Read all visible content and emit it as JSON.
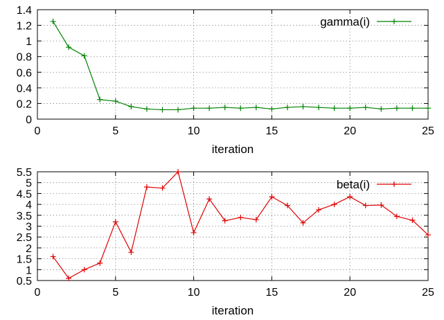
{
  "chart_data": [
    {
      "type": "line",
      "title": "",
      "xlabel": "iteration",
      "ylabel": "",
      "xlim": [
        0,
        25
      ],
      "ylim": [
        0,
        1.4
      ],
      "xticks": [
        0,
        5,
        10,
        15,
        20,
        25
      ],
      "yticks": [
        0,
        0.2,
        0.4,
        0.6,
        0.8,
        1,
        1.2,
        1.4
      ],
      "grid": true,
      "legend": "top-right",
      "series": [
        {
          "name": "gamma(i)",
          "color": "#008000",
          "marker": "plus",
          "x": [
            1,
            2,
            3,
            4,
            5,
            6,
            7,
            8,
            9,
            10,
            11,
            12,
            13,
            14,
            15,
            16,
            17,
            18,
            19,
            20,
            21,
            22,
            23,
            24,
            25
          ],
          "y": [
            1.25,
            0.92,
            0.81,
            0.25,
            0.23,
            0.16,
            0.13,
            0.12,
            0.12,
            0.14,
            0.14,
            0.15,
            0.14,
            0.15,
            0.13,
            0.15,
            0.16,
            0.15,
            0.14,
            0.14,
            0.15,
            0.13,
            0.14,
            0.14,
            0.14
          ]
        }
      ]
    },
    {
      "type": "line",
      "title": "",
      "xlabel": "iteration",
      "ylabel": "",
      "xlim": [
        0,
        25
      ],
      "ylim": [
        0.5,
        5.5
      ],
      "xticks": [
        0,
        5,
        10,
        15,
        20,
        25
      ],
      "yticks": [
        0.5,
        1,
        1.5,
        2,
        2.5,
        3,
        3.5,
        4,
        4.5,
        5,
        5.5
      ],
      "grid": true,
      "legend": "top-right",
      "series": [
        {
          "name": "beta(i)",
          "color": "#e00000",
          "marker": "plus",
          "x": [
            1,
            2,
            3,
            4,
            5,
            6,
            7,
            8,
            9,
            10,
            11,
            12,
            13,
            14,
            15,
            16,
            17,
            18,
            19,
            20,
            21,
            22,
            23,
            24,
            25
          ],
          "y": [
            1.6,
            0.6,
            1.0,
            1.3,
            3.2,
            1.8,
            4.8,
            4.75,
            5.5,
            2.7,
            4.25,
            3.25,
            3.4,
            3.3,
            4.35,
            3.95,
            3.15,
            3.75,
            4.0,
            4.35,
            3.95,
            3.97,
            3.45,
            3.27,
            2.6
          ]
        }
      ]
    }
  ]
}
